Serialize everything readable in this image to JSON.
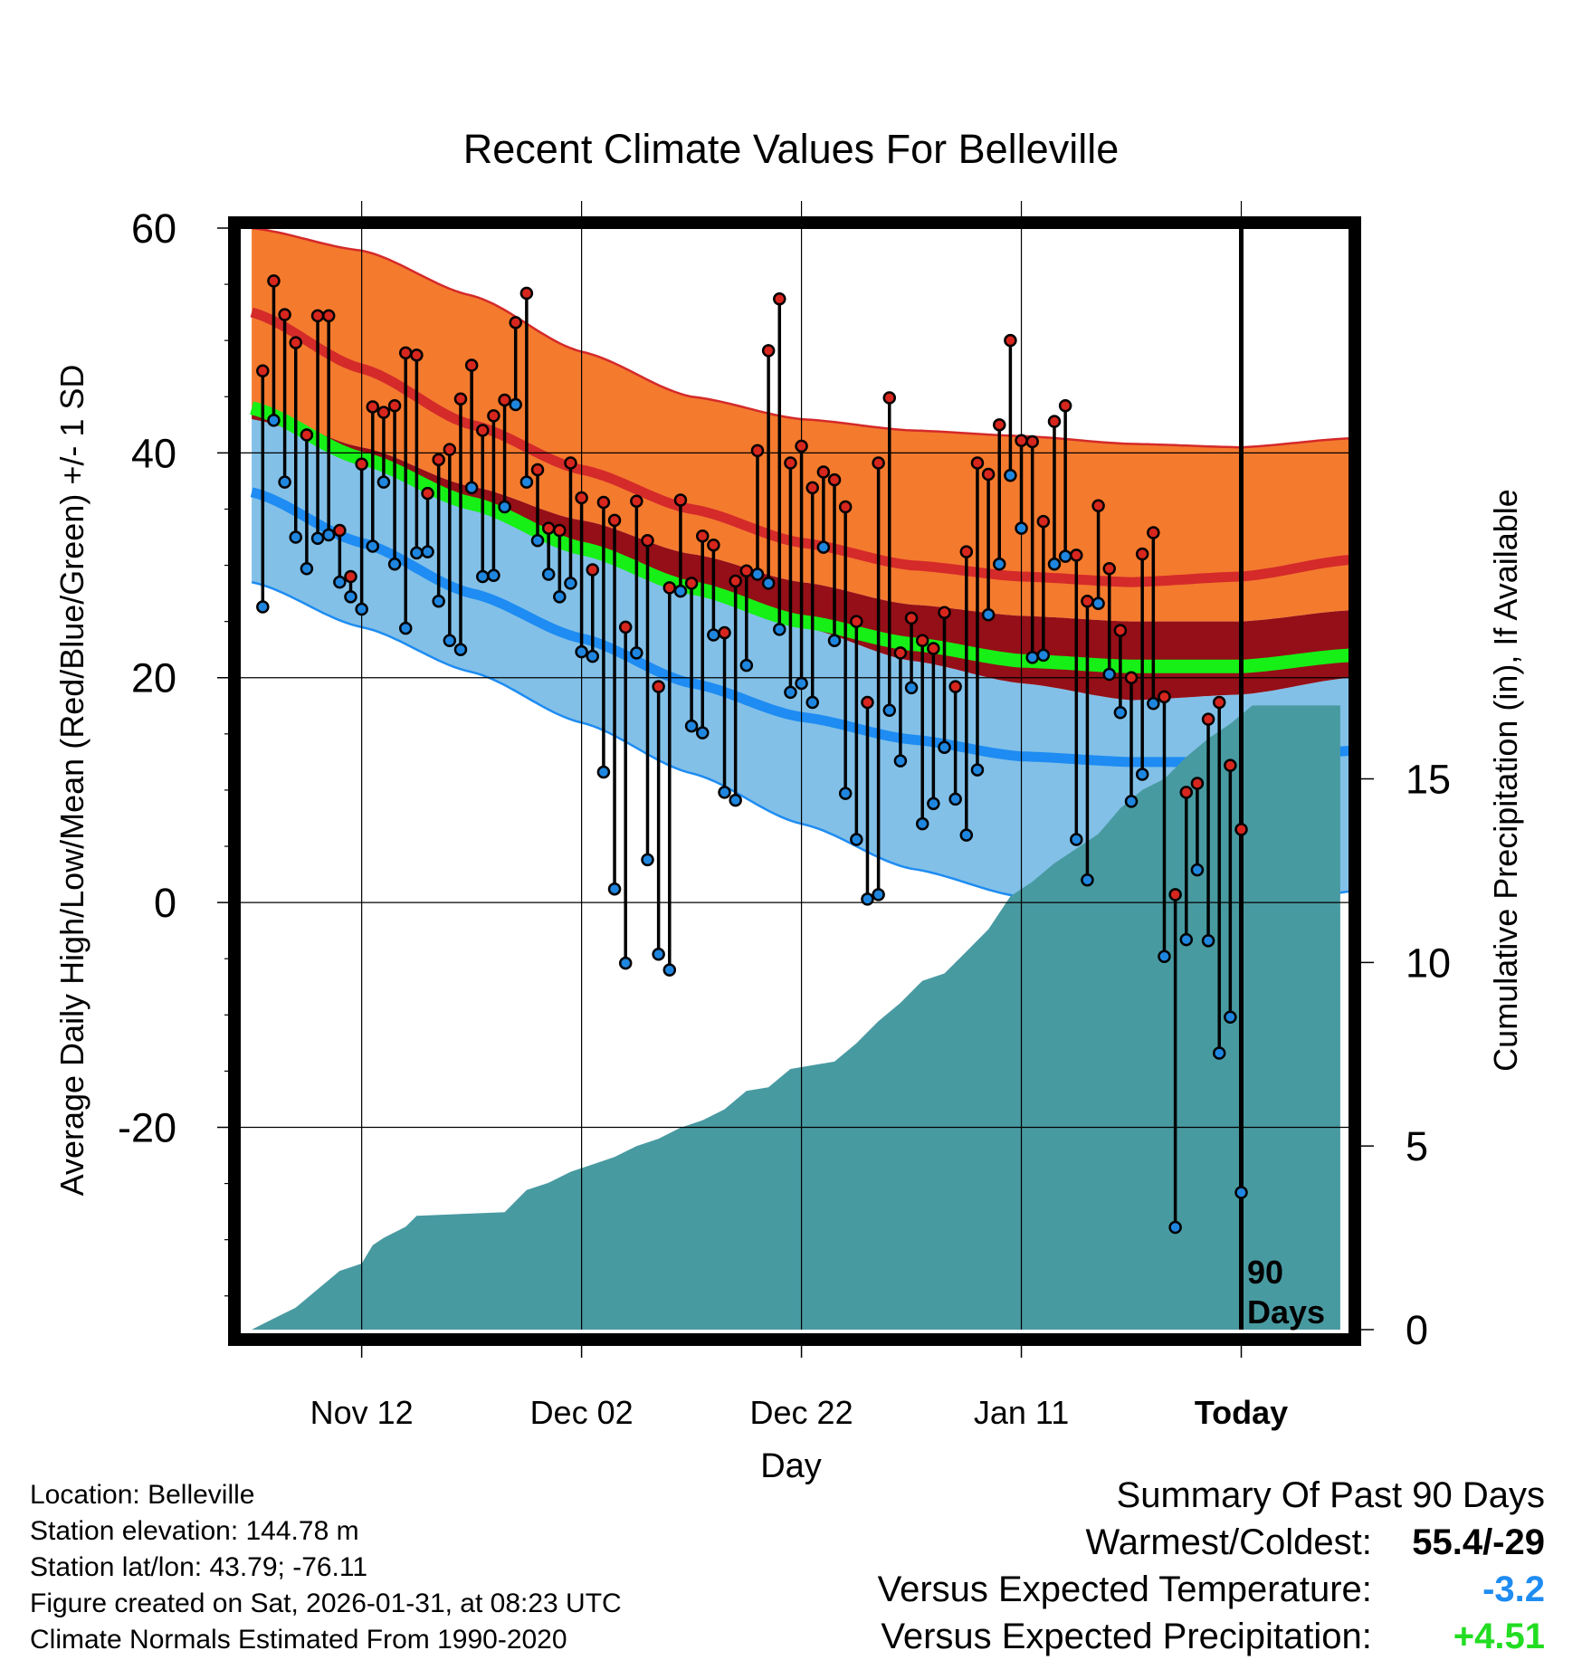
{
  "chart_data": {
    "type": "line",
    "title": "Recent Climate Values For Belleville",
    "xlabel": "Day",
    "ylabel": "Average Daily High/Low/Mean (Red/Blue/Green) +/- 1 SD",
    "y2label": "Cumulative Precipitation (in), If Available",
    "x_tick_labels": [
      "Nov 12",
      "Dec 02",
      "Dec 22",
      "Jan 11",
      "Today"
    ],
    "x_tick_days": [
      9,
      29,
      49,
      69,
      89
    ],
    "x_range": [
      -2,
      99
    ],
    "ylim": [
      -38,
      60
    ],
    "y_ticks": [
      60,
      40,
      20,
      0,
      -20
    ],
    "y2lim": [
      0,
      30
    ],
    "y2_ticks": [
      15,
      10,
      5,
      0
    ],
    "today_label": "90 Days",
    "colors": {
      "high_band": "#f47a2e",
      "high_mean": "#d42a2a",
      "mean_band": "#940f17",
      "mean_line": "#16f016",
      "low_band": "#82c0e8",
      "low_mean": "#1e8cf2",
      "precip": "#489aa1",
      "high_dot": "#d7261e",
      "low_dot": "#1f86df"
    },
    "normals": {
      "days": [
        -1,
        9,
        19,
        29,
        39,
        49,
        59,
        69,
        79,
        89,
        99
      ],
      "high_mean": [
        52.5,
        47.5,
        42.5,
        38.5,
        35,
        32,
        30,
        29,
        28.5,
        29,
        30.5
      ],
      "high_upper": [
        60,
        58,
        54,
        49,
        45,
        43,
        42,
        41.5,
        40.8,
        40.5,
        41.3
      ],
      "high_lower": [
        44,
        40.5,
        37,
        34,
        31,
        28.5,
        26.5,
        25.5,
        25,
        25,
        26
      ],
      "mean": [
        44,
        39.5,
        35.5,
        31.5,
        28,
        25,
        23,
        21.5,
        21,
        21,
        22
      ],
      "low_mean": [
        36.5,
        32,
        27.5,
        23.5,
        19.5,
        16.5,
        14.5,
        13,
        12.5,
        12.5,
        13.5
      ],
      "low_upper": [
        43,
        40,
        36,
        32,
        28,
        24.5,
        21.5,
        19.5,
        18,
        18.5,
        20
      ],
      "low_lower": [
        28.5,
        24.5,
        20.5,
        16,
        11.5,
        7,
        3,
        0.5,
        -1,
        -1,
        1
      ]
    },
    "series": [
      {
        "name": "High",
        "values": [
          47.3,
          55.3,
          52.3,
          49.8,
          41.6,
          52.2,
          52.2,
          33.1,
          29.0,
          39.0,
          44.1,
          43.6,
          44.2,
          48.9,
          48.7,
          36.4,
          39.4,
          40.3,
          44.8,
          47.8,
          42.0,
          43.3,
          44.7,
          51.6,
          54.2,
          38.5,
          33.3,
          33.1,
          39.1,
          36.0,
          29.6,
          35.6,
          34.0,
          24.5,
          35.7,
          32.2,
          19.2,
          28.0,
          35.8,
          28.4,
          32.6,
          31.8,
          24.0,
          28.6,
          29.5,
          40.2,
          49.1,
          53.7,
          39.1,
          40.6,
          36.9,
          38.3,
          37.6,
          35.2,
          25.0,
          17.8,
          39.1,
          44.9,
          22.2,
          25.3,
          23.3,
          22.6,
          25.8,
          19.2,
          31.2,
          39.1,
          38.1,
          42.5,
          50.0,
          41.1,
          41.0,
          33.9,
          42.8,
          44.2,
          30.9,
          26.8,
          35.3,
          29.7,
          24.2,
          20.0,
          31.0,
          32.9,
          18.3,
          0.7,
          9.8,
          10.6,
          16.3,
          17.8,
          12.2,
          6.5
        ]
      },
      {
        "name": "Low",
        "values": [
          26.3,
          42.9,
          37.4,
          32.5,
          29.7,
          32.4,
          32.7,
          28.5,
          27.2,
          26.1,
          31.7,
          37.4,
          30.1,
          24.4,
          31.1,
          31.2,
          26.8,
          23.3,
          22.5,
          36.9,
          29.0,
          29.1,
          35.2,
          44.3,
          37.4,
          32.2,
          29.2,
          27.2,
          28.4,
          22.3,
          21.9,
          11.6,
          1.2,
          -5.4,
          22.2,
          3.8,
          -4.6,
          -6.0,
          27.7,
          15.7,
          15.1,
          23.8,
          9.8,
          9.1,
          21.1,
          29.2,
          28.4,
          24.3,
          18.7,
          19.5,
          17.8,
          31.6,
          23.3,
          9.7,
          5.6,
          0.3,
          0.7,
          17.1,
          12.6,
          19.1,
          7.0,
          8.8,
          13.8,
          9.2,
          6.0,
          11.8,
          25.6,
          30.1,
          38.0,
          33.3,
          21.8,
          22.0,
          30.1,
          30.8,
          5.6,
          2.0,
          26.6,
          20.3,
          16.9,
          9.0,
          11.4,
          17.7,
          -4.8,
          -28.9,
          -3.3,
          2.9,
          -3.4,
          -13.4,
          -10.2,
          -25.8
        ]
      },
      {
        "name": "Cumulative Precipitation",
        "x": [
          -1,
          1,
          3,
          5,
          7,
          9,
          10,
          11,
          13,
          14,
          22,
          24,
          26,
          28,
          30,
          32,
          34,
          36,
          38,
          40,
          42,
          44,
          46,
          48,
          50,
          52,
          54,
          56,
          58,
          60,
          62,
          64,
          66,
          68,
          70,
          72,
          74,
          76,
          78,
          80,
          82,
          84,
          86,
          88,
          90,
          98
        ],
        "values": [
          0,
          0.3,
          0.6,
          1.1,
          1.6,
          1.8,
          2.3,
          2.5,
          2.8,
          3.1,
          3.2,
          3.8,
          4.0,
          4.3,
          4.5,
          4.7,
          5.0,
          5.2,
          5.5,
          5.7,
          6.0,
          6.5,
          6.6,
          7.1,
          7.2,
          7.3,
          7.8,
          8.4,
          8.9,
          9.5,
          9.7,
          10.3,
          10.9,
          11.8,
          12.2,
          12.7,
          13.1,
          13.5,
          14.2,
          14.7,
          15.0,
          15.6,
          16.1,
          16.5,
          17.0,
          17.0
        ]
      }
    ]
  },
  "footer": {
    "location": "Location: Belleville",
    "elevation": "Station elevation: 144.78 m",
    "latlon": "Station lat/lon: 43.79; -76.11",
    "created": "Figure created on Sat, 2026-01-31, at 08:23 UTC",
    "normals_note": "Climate Normals Estimated From 1990-2020"
  },
  "summary": {
    "title": "Summary Of Past 90 Days",
    "warm_cold_label": "Warmest/Coldest:",
    "warm_cold_value": "55.4/-29",
    "temp_label": "Versus Expected Temperature:",
    "temp_value": "-3.2",
    "temp_color": "#1e8cf2",
    "precip_label": "Versus Expected Precipitation:",
    "precip_value": "+4.51",
    "precip_color": "#22dd22"
  }
}
